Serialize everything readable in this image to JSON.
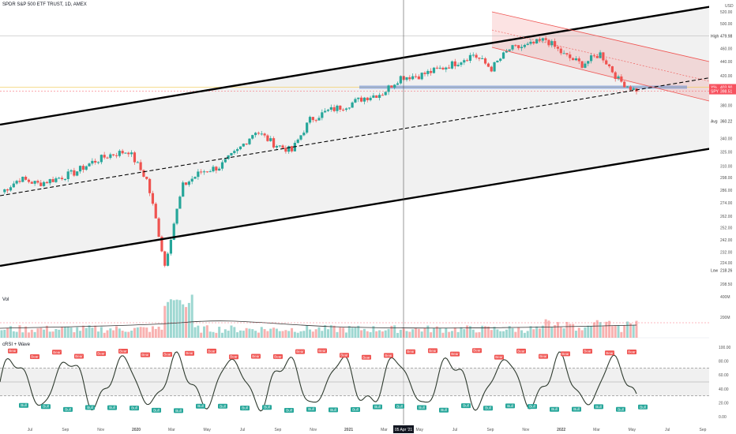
{
  "header": {
    "title": "SPDR S&P 500 ETF TRUST, 1D, AMEX",
    "currency": "USD"
  },
  "panes": {
    "volume_label": "Vol",
    "oscillator_label": "cRSI + Wave"
  },
  "crosshair_date_label": "05 Apr '21",
  "colors": {
    "up": "#26a69a",
    "down": "#ef5350",
    "channel_line": "#000000",
    "descending_channel": "#ef5350",
    "band_fill": "#e6e6e6",
    "volume_ma": "#333333",
    "support_zone": "#6a8ed6",
    "spy_label": "#f7525f"
  },
  "price_axis": {
    "ticks": [
      "520.00",
      "500.00",
      "479.98",
      "460.00",
      "440.00",
      "420.00",
      "380.00",
      "360.22",
      "340.00",
      "325.00",
      "310.00",
      "298.00",
      "286.00",
      "274.00",
      "262.00",
      "252.00",
      "242.00",
      "232.00",
      "224.00",
      "218.26",
      "208.50"
    ],
    "badges": [
      {
        "label": "High",
        "value": "479.98"
      },
      {
        "label": "Avg",
        "value": "360.22"
      },
      {
        "label": "Low",
        "value": "218.26"
      },
      {
        "label": "Y%",
        "value": "403.90"
      },
      {
        "label": "SPY",
        "value": "398.51"
      }
    ]
  },
  "volume_axis": {
    "ticks": [
      "400M",
      "200M"
    ]
  },
  "oscillator_axis": {
    "ticks": [
      "100.00",
      "80.00",
      "60.00",
      "40.00",
      "20.00",
      "0.00"
    ]
  },
  "time_axis": {
    "labels": [
      "Jul",
      "Sep",
      "Nov",
      "2020",
      "Mar",
      "May",
      "Jul",
      "Sep",
      "Nov",
      "2021",
      "Mar",
      "May",
      "Jul",
      "Sep",
      "Nov",
      "2022",
      "Mar",
      "May",
      "Jul",
      "Sep"
    ]
  },
  "signal_labels": {
    "bear": "Bear",
    "bull": "Bull"
  },
  "chart_data": {
    "type": "candlestick",
    "title": "SPDR S&P 500 ETF TRUST, 1D, AMEX",
    "x": [
      "2019-06",
      "2019-07",
      "2019-08",
      "2019-09",
      "2019-10",
      "2019-11",
      "2019-12",
      "2020-01",
      "2020-02",
      "2020-03-23",
      "2020-04",
      "2020-05",
      "2020-06",
      "2020-07",
      "2020-08",
      "2020-09",
      "2020-10",
      "2020-11",
      "2020-12",
      "2021-01",
      "2021-02",
      "2021-03",
      "2021-04",
      "2021-05",
      "2021-06",
      "2021-07",
      "2021-08",
      "2021-09",
      "2021-10",
      "2021-11",
      "2021-12",
      "2022-01",
      "2022-02",
      "2022-03",
      "2022-04",
      "2022-05"
    ],
    "close": [
      284,
      297,
      292,
      297,
      303,
      314,
      322,
      326,
      296,
      222,
      290,
      304,
      309,
      326,
      349,
      334,
      326,
      362,
      373,
      380,
      390,
      396,
      418,
      420,
      428,
      438,
      451,
      430,
      459,
      464,
      474,
      450,
      436,
      452,
      414,
      398
    ],
    "ylim": [
      208.5,
      530
    ],
    "y_scale": "log",
    "annotations": {
      "high": 479.98,
      "avg": 360.22,
      "low": 218.26,
      "last": 398.51
    },
    "volume": {
      "ylim": [
        0,
        400
      ],
      "unit": "M"
    },
    "oscillator": {
      "name": "cRSI + Wave",
      "ylim": [
        0,
        100
      ],
      "bands": [
        30,
        70
      ]
    }
  }
}
